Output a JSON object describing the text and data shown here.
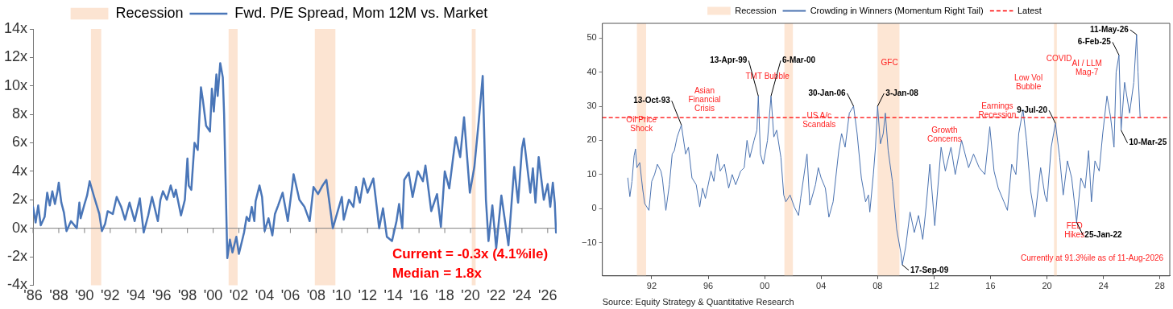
{
  "chart_data": [
    {
      "type": "line",
      "legend": "top",
      "xlim": [
        1986,
        2026.7
      ],
      "xticks": [
        {
          "value": 1986,
          "label": "'86"
        },
        {
          "value": 1988,
          "label": "'88"
        },
        {
          "value": 1990,
          "label": "'90"
        },
        {
          "value": 1992,
          "label": "'92"
        },
        {
          "value": 1994,
          "label": "'94"
        },
        {
          "value": 1996,
          "label": "'96"
        },
        {
          "value": 1998,
          "label": "'98"
        },
        {
          "value": 2000,
          "label": "'00"
        },
        {
          "value": 2002,
          "label": "'02"
        },
        {
          "value": 2004,
          "label": "'04"
        },
        {
          "value": 2006,
          "label": "'06"
        },
        {
          "value": 2008,
          "label": "'08"
        },
        {
          "value": 2010,
          "label": "'10"
        },
        {
          "value": 2012,
          "label": "'12"
        },
        {
          "value": 2014,
          "label": "'14"
        },
        {
          "value": 2016,
          "label": "'16"
        },
        {
          "value": 2018,
          "label": "'18"
        },
        {
          "value": 2020,
          "label": "'20"
        },
        {
          "value": 2022,
          "label": "'22"
        },
        {
          "value": 2024,
          "label": "'24"
        },
        {
          "value": 2026,
          "label": "'26"
        }
      ],
      "ylim": [
        -4,
        14
      ],
      "yticks": [
        {
          "value": -4,
          "label": "-4x"
        },
        {
          "value": -2,
          "label": "-2x"
        },
        {
          "value": 0,
          "label": "0x"
        },
        {
          "value": 2,
          "label": "2x"
        },
        {
          "value": 4,
          "label": "4x"
        },
        {
          "value": 6,
          "label": "6x"
        },
        {
          "value": 8,
          "label": "8x"
        },
        {
          "value": 10,
          "label": "10x"
        },
        {
          "value": 12,
          "label": "12x"
        },
        {
          "value": 14,
          "label": "14x"
        }
      ],
      "bands": [
        {
          "axis": "x",
          "from": 1990.5,
          "to": 1991.3,
          "label": "Recession",
          "color": "#fce4d2"
        },
        {
          "axis": "x",
          "from": 2001.2,
          "to": 2001.9,
          "color": "#fce4d2"
        },
        {
          "axis": "x",
          "from": 2007.9,
          "to": 2009.5,
          "color": "#fce4d2"
        },
        {
          "axis": "x",
          "from": 2020.1,
          "to": 2020.4,
          "color": "#fce4d2"
        }
      ],
      "series": [
        {
          "name": "Fwd. P/E Spread, Mom 12M vs. Market",
          "color": "#4a76b8",
          "x": [
            1986.0,
            1986.2,
            1986.4,
            1986.6,
            1986.9,
            1987.1,
            1987.3,
            1987.5,
            1987.7,
            1987.9,
            1988.0,
            1988.2,
            1988.4,
            1988.6,
            1988.95,
            1989.4,
            1989.6,
            1989.7,
            1990.0,
            1990.2,
            1990.4,
            1990.75,
            1991.15,
            1991.35,
            1991.6,
            1991.8,
            1992.2,
            1992.5,
            1992.85,
            1993.15,
            1993.5,
            1993.9,
            1994.3,
            1994.6,
            1994.95,
            1995.25,
            1995.7,
            1995.9,
            1996.1,
            1996.4,
            1996.7,
            1996.95,
            1997.1,
            1997.5,
            1997.8,
            1998.0,
            1998.1,
            1998.3,
            1998.55,
            1998.8,
            1999.05,
            1999.2,
            1999.45,
            1999.75,
            1999.9,
            2000.05,
            2000.25,
            2000.35,
            2000.55,
            2000.75,
            2000.85,
            2001.1,
            2001.3,
            2001.5,
            2001.8,
            2002.0,
            2002.4,
            2002.6,
            2002.8,
            2003.0,
            2003.2,
            2003.3,
            2003.6,
            2003.8,
            2004.0,
            2004.3,
            2004.6,
            2004.8,
            2005.05,
            2005.4,
            2005.8,
            2006.15,
            2006.25,
            2006.7,
            2007.1,
            2007.5,
            2007.8,
            2008.15,
            2008.5,
            2008.8,
            2009.3,
            2010.0,
            2010.15,
            2010.55,
            2010.9,
            2011.1,
            2011.4,
            2011.7,
            2012.0,
            2012.45,
            2012.75,
            2012.9,
            2013.2,
            2013.5,
            2013.9,
            2014.25,
            2014.45,
            2014.7,
            2014.85,
            2015.2,
            2015.5,
            2015.9,
            2016.3,
            2016.5,
            2016.95,
            2017.4,
            2017.7,
            2018.0,
            2018.35,
            2018.85,
            2019.2,
            2019.5,
            2019.95,
            2020.3,
            2020.65,
            2020.95,
            2021.2,
            2021.4,
            2021.7,
            2022.0,
            2022.4,
            2022.95,
            2023.4,
            2023.7,
            2024.0,
            2024.15,
            2024.65,
            2024.85,
            2025.05,
            2025.3,
            2025.7,
            2026.0,
            2026.2,
            2026.4,
            2026.55,
            2026.65
          ],
          "values": [
            1.5,
            0.4,
            1.6,
            0.2,
            0.8,
            2.5,
            1.6,
            2.6,
            1.7,
            2.6,
            3.2,
            1.8,
            1.1,
            -0.2,
            0.5,
            0.0,
            1.8,
            0.7,
            1.7,
            2.3,
            3.3,
            2.2,
            1.0,
            -0.2,
            0.3,
            1.2,
            1.0,
            2.2,
            1.5,
            0.6,
            1.8,
            0.5,
            2.1,
            -0.3,
            0.9,
            2.2,
            0.5,
            2.0,
            2.6,
            2.0,
            3.0,
            2.2,
            2.7,
            0.9,
            2.0,
            4.9,
            3.0,
            2.7,
            6.0,
            5.5,
            9.9,
            9.0,
            7.2,
            6.8,
            9.8,
            8.2,
            10.8,
            9.3,
            11.6,
            10.6,
            8.0,
            -2.1,
            -0.8,
            -1.7,
            -0.6,
            -1.8,
            -0.3,
            0.8,
            0.5,
            1.5,
            0.5,
            1.9,
            3.0,
            2.2,
            -0.2,
            0.7,
            -0.5,
            1.0,
            1.6,
            2.5,
            0.5,
            3.0,
            3.8,
            2.0,
            1.5,
            0.5,
            2.9,
            2.4,
            3.0,
            3.4,
            0.0,
            2.2,
            0.6,
            2.0,
            1.5,
            2.9,
            1.8,
            3.5,
            2.5,
            3.5,
            1.2,
            0.0,
            1.4,
            -0.6,
            -0.9,
            0.5,
            1.7,
            0.0,
            3.4,
            3.9,
            2.2,
            4.0,
            3.3,
            4.4,
            1.2,
            2.4,
            0.1,
            4.0,
            2.8,
            6.4,
            5.0,
            7.8,
            2.5,
            4.3,
            7.6,
            10.7,
            2.0,
            -0.9,
            1.6,
            -1.4,
            2.3,
            -1.2,
            4.3,
            1.8,
            5.6,
            6.3,
            2.5,
            4.2,
            1.8,
            5.0,
            2.0,
            3.1,
            1.5,
            3.2,
            1.8,
            -0.3
          ]
        }
      ],
      "annotations": [
        "Current = -0.3x (4.1%ile)",
        "Median = 1.8x"
      ]
    },
    {
      "type": "line",
      "legend": "top",
      "xlim": [
        1988.5,
        2028.7
      ],
      "xticks": [
        {
          "value": 1992,
          "label": "92"
        },
        {
          "value": 1996,
          "label": "96"
        },
        {
          "value": 2000,
          "label": "00"
        },
        {
          "value": 2004,
          "label": "04"
        },
        {
          "value": 2008,
          "label": "08"
        },
        {
          "value": 2012,
          "label": "12"
        },
        {
          "value": 2016,
          "label": "16"
        },
        {
          "value": 2020,
          "label": "20"
        },
        {
          "value": 2024,
          "label": "24"
        },
        {
          "value": 2028,
          "label": "28"
        }
      ],
      "ylim": [
        -19.7,
        54.3
      ],
      "yticks": [
        {
          "value": -10,
          "label": "−10"
        },
        0,
        10,
        20,
        30,
        40,
        50
      ],
      "bands": [
        {
          "axis": "x",
          "from": 1990.95,
          "to": 1991.6,
          "label": "Recession",
          "color": "#fde6d4"
        },
        {
          "axis": "x",
          "from": 2001.4,
          "to": 2002.0,
          "color": "#fde6d4"
        },
        {
          "axis": "x",
          "from": 2008.0,
          "to": 2009.55,
          "color": "#fde6d4"
        },
        {
          "axis": "x",
          "from": 2020.5,
          "to": 2020.7,
          "color": "#fde6d4"
        }
      ],
      "ref_lines": [
        {
          "axis": "y",
          "value": 26.7,
          "label": "Latest",
          "color": "#ff0000",
          "line_style": "dashed"
        }
      ],
      "series": [
        {
          "name": "Crowding in Winners (Momentum Right Tail)",
          "color": "#4a72b0",
          "x": [
            1990.3,
            1990.45,
            1990.6,
            1990.75,
            1990.85,
            1990.95,
            1991.15,
            1991.35,
            1991.5,
            1991.8,
            1992.0,
            1992.2,
            1992.4,
            1992.65,
            1992.75,
            1993.0,
            1993.25,
            1993.45,
            1993.6,
            1993.8,
            1994.1,
            1994.4,
            1994.6,
            1994.85,
            1995.15,
            1995.4,
            1995.6,
            1995.8,
            1996.2,
            1996.4,
            1996.65,
            1996.85,
            1997.15,
            1997.45,
            1997.7,
            1997.95,
            1998.3,
            1998.55,
            1998.75,
            1998.95,
            1999.25,
            1999.45,
            1999.55,
            1999.7,
            1999.9,
            2000.2,
            2000.45,
            2000.65,
            2000.85,
            2001.15,
            2001.35,
            2001.5,
            2001.8,
            2002.1,
            2002.4,
            2002.55,
            2003.0,
            2003.2,
            2003.6,
            2003.8,
            2004.0,
            2004.3,
            2004.55,
            2004.85,
            2005.25,
            2005.45,
            2005.7,
            2006.0,
            2006.3,
            2006.55,
            2006.85,
            2007.15,
            2007.35,
            2007.45,
            2007.7,
            2007.85,
            2008.0,
            2008.2,
            2008.4,
            2008.55,
            2008.75,
            2009.05,
            2009.35,
            2009.65,
            2009.75,
            2010.0,
            2010.3,
            2010.6,
            2010.9,
            2011.2,
            2011.45,
            2011.7,
            2012.05,
            2012.5,
            2012.8,
            2013.2,
            2013.5,
            2013.95,
            2014.45,
            2014.8,
            2015.2,
            2015.6,
            2015.95,
            2016.25,
            2016.55,
            2016.95,
            2017.2,
            2017.5,
            2017.8,
            2018.0,
            2018.3,
            2018.55,
            2018.85,
            2019.15,
            2019.55,
            2019.85,
            2020.0,
            2020.3,
            2020.6,
            2020.9,
            2021.15,
            2021.45,
            2021.75,
            2022.1,
            2022.4,
            2022.7,
            2022.95,
            2023.15,
            2023.4,
            2023.7,
            2023.95,
            2024.25,
            2024.5,
            2024.75,
            2024.9,
            2025.1,
            2025.25,
            2025.5,
            2025.85,
            2026.15,
            2026.35,
            2026.45,
            2026.6
          ],
          "values": [
            9,
            3.5,
            8,
            15.5,
            17.5,
            12,
            13.5,
            6,
            1.5,
            -0.5,
            8,
            10,
            13,
            11,
            9,
            -0.5,
            7,
            16,
            17,
            21,
            24.5,
            16,
            18,
            9,
            7,
            0.5,
            6,
            3,
            11,
            8,
            16,
            11,
            13,
            6,
            10,
            7,
            11,
            12,
            20,
            15,
            20,
            23,
            33,
            16,
            13,
            20,
            33,
            21,
            23,
            15,
            4,
            2,
            4,
            0.5,
            -2,
            3,
            16,
            1,
            7,
            12,
            9,
            6,
            -2.5,
            2,
            17,
            22,
            18,
            28,
            30,
            22,
            9,
            2,
            4,
            -1,
            10,
            18,
            30,
            19,
            22,
            28,
            17,
            8,
            -6,
            -13,
            -16.5,
            -11,
            -1,
            -7,
            -2,
            -9,
            1,
            13,
            -5,
            18,
            11,
            18,
            10,
            20,
            12,
            16,
            12,
            10,
            24,
            11,
            6,
            2,
            -0.5,
            13,
            10,
            22,
            29,
            20,
            5,
            -2.5,
            12,
            4,
            2,
            18,
            25,
            15,
            4,
            14,
            9,
            -4,
            9,
            6,
            17,
            2,
            14,
            11,
            22,
            33,
            27,
            18,
            40,
            45,
            23,
            37,
            28,
            37,
            51,
            40,
            26.7
          ]
        }
      ],
      "annotations": [
        {
          "text": "13-Oct-93",
          "x": 1994.1,
          "y": 24.5
        },
        {
          "text": "13-Apr-99",
          "x": 1999.55,
          "y": 33
        },
        {
          "text": "6-Mar-00",
          "x": 2000.45,
          "y": 33
        },
        {
          "text": "30-Jan-06",
          "x": 2006.3,
          "y": 30
        },
        {
          "text": "3-Jan-08",
          "x": 2008.0,
          "y": 30
        },
        {
          "text": "17-Sep-09",
          "x": 2009.75,
          "y": -16.5
        },
        {
          "text": "9-Jul-20",
          "x": 2020.6,
          "y": 25
        },
        {
          "text": "25-Jan-22",
          "x": 2022.1,
          "y": -4
        },
        {
          "text": "6-Feb-25",
          "x": 2025.1,
          "y": 45
        },
        {
          "text": "10-Mar-25",
          "x": 2025.25,
          "y": 23
        },
        {
          "text": "11-May-26",
          "x": 2026.35,
          "y": 51
        },
        "Oil Price\nShock",
        "Asian\nFinancial\nCrisis",
        "TMT Bubble",
        "US A/c\nScandals",
        "GFC",
        "Growth\nConcerns",
        "Earnings\nRecession",
        "Low Vol\nBubble",
        "COVID",
        "AI / LLM\nMag-7",
        "FED\nHikes",
        "Currently at 91.3%ile as of 11-Aug-2026",
        "Source: Equity Strategy & Quantitative Research"
      ]
    }
  ]
}
